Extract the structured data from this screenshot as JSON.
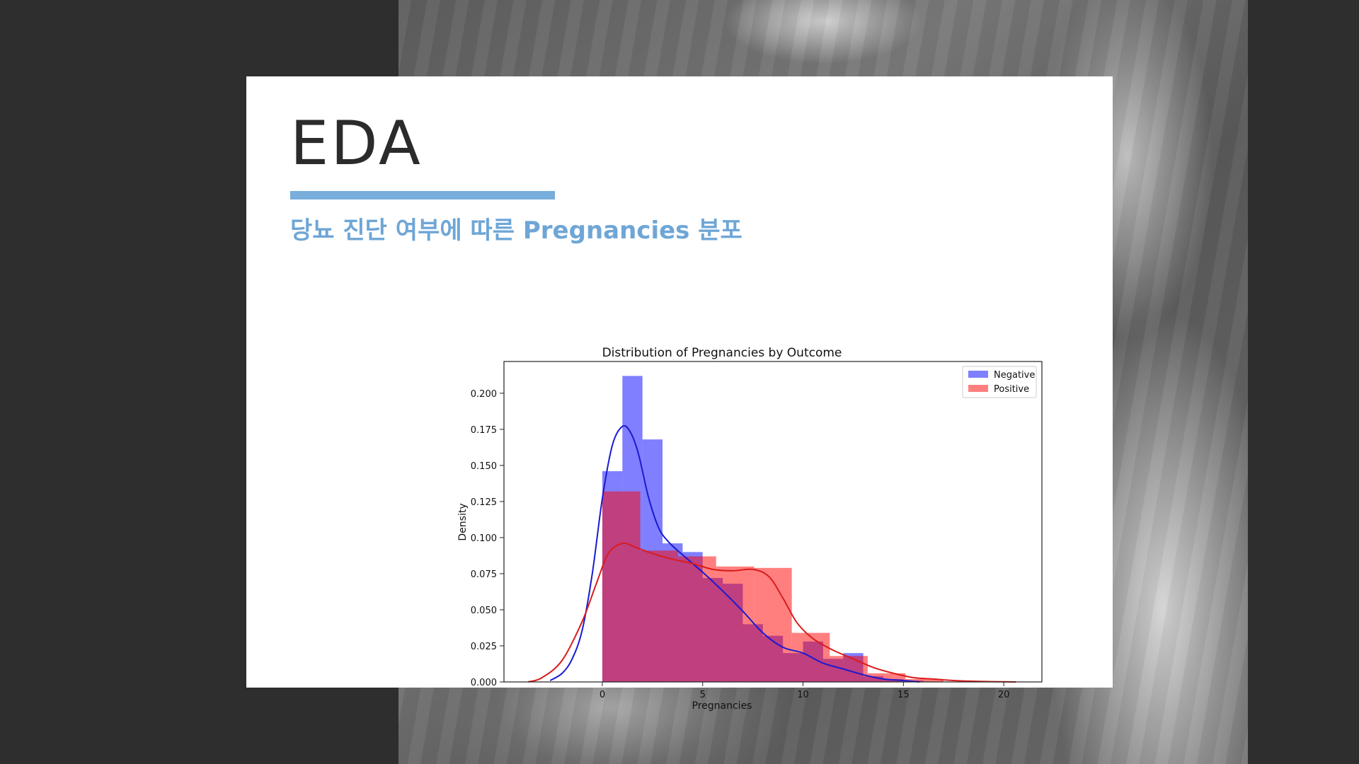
{
  "slide": {
    "title": "EDA",
    "subtitle": "당뇨 진단 여부에 따른 Pregnancies 분포"
  },
  "colors": {
    "accent": "#77aedb",
    "subtitle": "#6ea6d6",
    "negative": "#0000ff",
    "positive": "#ff0000",
    "negative_kde": "#1a1ad0",
    "positive_kde": "#d91c1c"
  },
  "chart_data": {
    "type": "histogram",
    "title": "Distribution of Pregnancies by Outcome",
    "xlabel": "Pregnancies",
    "ylabel": "Density",
    "xlim": [
      -4.9,
      21.9
    ],
    "ylim": [
      0,
      0.222
    ],
    "xticks": [
      0,
      5,
      10,
      15,
      20
    ],
    "yticks": [
      0.0,
      0.025,
      0.05,
      0.075,
      0.1,
      0.125,
      0.15,
      0.175,
      0.2
    ],
    "ytick_labels": [
      "0.000",
      "0.025",
      "0.050",
      "0.075",
      "0.100",
      "0.125",
      "0.150",
      "0.175",
      "0.200"
    ],
    "grid": false,
    "legend_position": "upper right",
    "legend": [
      "Negative",
      "Positive"
    ],
    "series": [
      {
        "name": "Negative",
        "kind": "hist",
        "bins": [
          [
            0.0,
            1.0,
            0.146
          ],
          [
            1.0,
            2.0,
            0.212
          ],
          [
            2.0,
            3.0,
            0.168
          ],
          [
            3.0,
            4.0,
            0.096
          ],
          [
            4.0,
            5.0,
            0.09
          ],
          [
            5.0,
            6.0,
            0.072
          ],
          [
            6.0,
            7.0,
            0.068
          ],
          [
            7.0,
            8.0,
            0.04
          ],
          [
            8.0,
            9.0,
            0.032
          ],
          [
            9.0,
            10.0,
            0.02
          ],
          [
            10.0,
            11.0,
            0.028
          ],
          [
            11.0,
            12.0,
            0.016
          ],
          [
            12.0,
            13.0,
            0.02
          ],
          [
            13.0,
            14.0,
            0.004
          ],
          [
            14.0,
            15.0,
            0.002
          ],
          [
            15.0,
            16.0,
            0.001
          ]
        ]
      },
      {
        "name": "Positive",
        "kind": "hist",
        "bins": [
          [
            0.0,
            1.89,
            0.132
          ],
          [
            1.89,
            3.78,
            0.091
          ],
          [
            3.78,
            5.67,
            0.087
          ],
          [
            5.67,
            7.56,
            0.08
          ],
          [
            7.56,
            9.44,
            0.079
          ],
          [
            9.44,
            11.33,
            0.034
          ],
          [
            11.33,
            13.22,
            0.018
          ],
          [
            13.22,
            15.11,
            0.006
          ],
          [
            15.11,
            17.0,
            0.002
          ]
        ]
      },
      {
        "name": "Negative",
        "kind": "kde",
        "x": [
          -2.6,
          -2.0,
          -1.5,
          -1.0,
          -0.5,
          0.0,
          0.5,
          1.0,
          1.4,
          1.8,
          2.3,
          2.8,
          3.3,
          4.0,
          5.0,
          6.0,
          7.0,
          8.0,
          9.0,
          10.0,
          11.0,
          12.0,
          13.0,
          14.0,
          15.0,
          15.8
        ],
        "y": [
          0.001,
          0.006,
          0.016,
          0.036,
          0.075,
          0.127,
          0.164,
          0.177,
          0.173,
          0.158,
          0.128,
          0.107,
          0.097,
          0.088,
          0.076,
          0.063,
          0.049,
          0.034,
          0.024,
          0.02,
          0.013,
          0.009,
          0.005,
          0.002,
          0.001,
          0.0
        ]
      },
      {
        "name": "Positive",
        "kind": "kde",
        "x": [
          -3.7,
          -3.0,
          -2.0,
          -1.0,
          -0.3,
          0.3,
          1.0,
          1.7,
          2.5,
          3.5,
          4.5,
          5.5,
          6.5,
          7.5,
          8.3,
          9.0,
          9.7,
          10.5,
          11.5,
          12.5,
          13.5,
          14.5,
          15.5,
          16.5,
          17.5,
          18.5,
          19.5,
          20.6
        ],
        "y": [
          0.0,
          0.003,
          0.015,
          0.042,
          0.068,
          0.089,
          0.096,
          0.093,
          0.089,
          0.085,
          0.082,
          0.078,
          0.077,
          0.078,
          0.073,
          0.058,
          0.041,
          0.03,
          0.022,
          0.016,
          0.01,
          0.006,
          0.003,
          0.002,
          0.001,
          0.0005,
          0.0002,
          0.0
        ]
      }
    ]
  }
}
